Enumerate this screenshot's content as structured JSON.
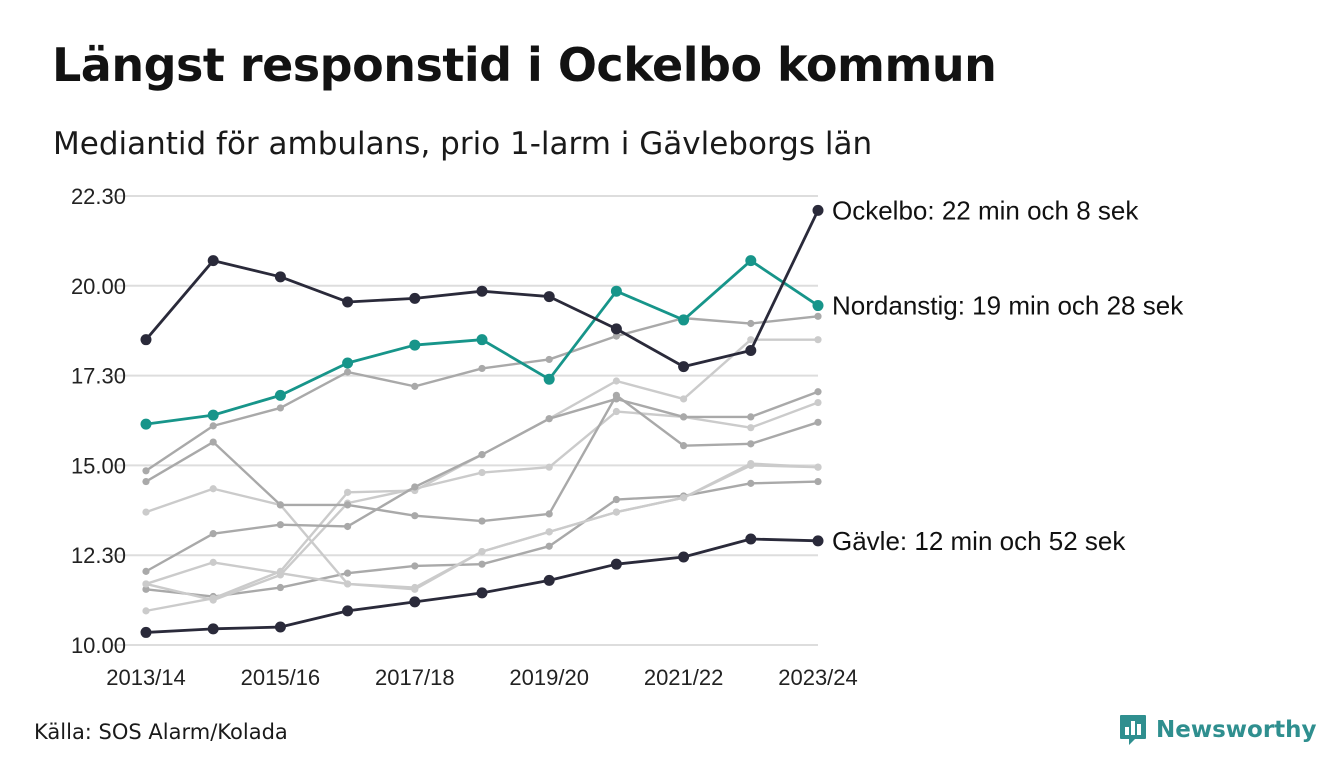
{
  "title": "Längst responstid i Ockelbo kommun",
  "subtitle": "Mediantid för ambulans, prio 1-larm i Gävleborgs län",
  "source": "Källa: SOS Alarm/Kolada",
  "brand": {
    "name": "Newsworthy",
    "icon": "newsworthy-logo-icon",
    "color": "#2f8f8f"
  },
  "colors": {
    "dark": "#2a2a3a",
    "teal": "#17958a",
    "gray_mid": "#a9a9a9",
    "gray_light": "#cbcbcb",
    "grid": "#dddddd"
  },
  "chart_data": {
    "type": "line",
    "x": [
      "2013/14",
      "2014/15",
      "2015/16",
      "2016/17",
      "2017/18",
      "2018/19",
      "2019/20",
      "2020/21",
      "2021/22",
      "2022/23",
      "2023/24"
    ],
    "x_tick_labels": [
      "2013/14",
      "2015/16",
      "2017/18",
      "2019/20",
      "2021/22",
      "2023/24"
    ],
    "y_ticks": [
      10.0,
      12.5,
      15.0,
      17.5,
      20.0,
      22.5
    ],
    "y_tick_labels": [
      "10.00",
      "12.30",
      "15.00",
      "17.30",
      "20.00",
      "22.30"
    ],
    "ylim": [
      10.0,
      22.5
    ],
    "grid": true,
    "series": [
      {
        "style": "gray_mid",
        "values": [
          11.55,
          11.35,
          11.6,
          12.0,
          12.2,
          12.25,
          12.75,
          14.05,
          14.15,
          14.5,
          14.55
        ]
      },
      {
        "style": "gray_light",
        "values": [
          10.95,
          11.3,
          12.05,
          14.25,
          14.3,
          15.3,
          16.3,
          17.35,
          16.85,
          18.5,
          18.5
        ]
      },
      {
        "style": "gray_light",
        "values": [
          11.7,
          11.25,
          11.95,
          13.95,
          14.35,
          14.8,
          14.95,
          16.5,
          16.35,
          16.05,
          16.75
        ]
      },
      {
        "style": "gray_light",
        "values": [
          13.7,
          14.35,
          13.9,
          11.7,
          11.6,
          12.6,
          13.15,
          13.7,
          14.1,
          15.05,
          14.95
        ]
      },
      {
        "style": "gray_light",
        "values": [
          11.7,
          12.3,
          12.0,
          11.7,
          11.55,
          12.6,
          13.15,
          13.7,
          14.1,
          15.0,
          14.95
        ]
      },
      {
        "style": "gray_mid",
        "values": [
          12.05,
          13.1,
          13.35,
          13.3,
          14.4,
          15.3,
          16.3,
          16.85,
          16.35,
          16.35,
          17.05
        ]
      },
      {
        "style": "gray_mid",
        "values": [
          14.55,
          15.65,
          13.9,
          13.9,
          13.6,
          13.45,
          13.65,
          16.95,
          15.55,
          15.6,
          16.2
        ]
      },
      {
        "style": "gray_mid",
        "values": [
          14.85,
          16.1,
          16.6,
          17.6,
          17.2,
          17.7,
          17.95,
          18.6,
          19.1,
          18.95,
          19.15
        ]
      },
      {
        "name": "Gävle",
        "style": "dark",
        "label": "Gävle: 12 min och 52 sek",
        "values": [
          10.35,
          10.45,
          10.5,
          10.95,
          11.2,
          11.45,
          11.8,
          12.25,
          12.45,
          12.95,
          12.9
        ]
      },
      {
        "name": "Nordanstig",
        "style": "teal",
        "label": "Nordanstig: 19 min och 28 sek",
        "values": [
          16.15,
          16.4,
          16.95,
          17.85,
          18.35,
          18.5,
          17.4,
          19.85,
          19.05,
          20.7,
          19.45
        ]
      },
      {
        "name": "Ockelbo",
        "style": "dark",
        "label": "Ockelbo: 22 min och 8 sek",
        "values": [
          18.5,
          20.7,
          20.25,
          19.55,
          19.65,
          19.85,
          19.7,
          18.8,
          17.75,
          18.2,
          22.1
        ]
      }
    ]
  }
}
